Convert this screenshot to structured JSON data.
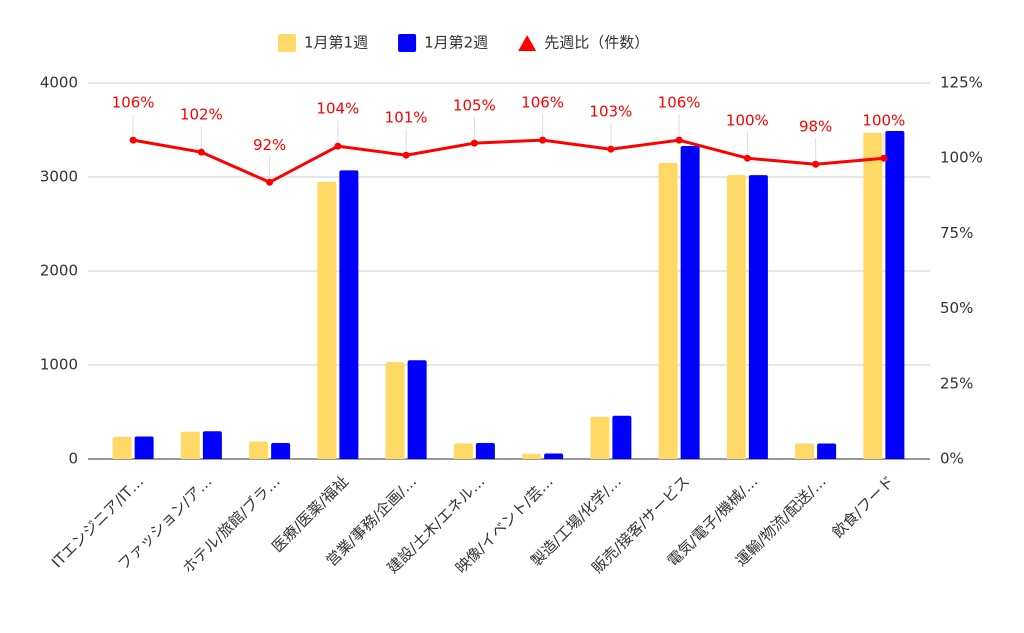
{
  "chart_data": {
    "type": "bar-line",
    "categories": [
      "ITエンジニア/IT…",
      "ファッション/ア…",
      "ホテル/旅館/ブラ…",
      "医療/医薬/福祉",
      "営業/事務/企画/…",
      "建設/土木/エネル…",
      "映像/イベント/芸…",
      "製造/工場/化学/…",
      "販売/接客/サービス",
      "電気/電子/機械/…",
      "運輸/物流/配送/…",
      "飲食/フード"
    ],
    "series": [
      {
        "name": "1月第1週",
        "color": "#ffd966",
        "values": [
          235,
          290,
          185,
          2950,
          1030,
          165,
          55,
          450,
          3150,
          3020,
          165,
          3470
        ]
      },
      {
        "name": "1月第2週",
        "color": "#0000ff",
        "values": [
          240,
          295,
          170,
          3070,
          1050,
          170,
          58,
          460,
          3330,
          3020,
          165,
          3490
        ]
      },
      {
        "name": "先週比（件数）",
        "color": "#ff0000",
        "axis": "y2",
        "values": [
          106,
          102,
          92,
          104,
          101,
          105,
          106,
          103,
          106,
          100,
          98,
          100
        ],
        "value_labels": [
          "106%",
          "102%",
          "92%",
          "104%",
          "101%",
          "105%",
          "106%",
          "103%",
          "106%",
          "100%",
          "98%",
          "100%"
        ]
      }
    ],
    "ylim": [
      0,
      4000
    ],
    "yticks": [
      0,
      1000,
      2000,
      3000,
      4000
    ],
    "y2lim": [
      0,
      125
    ],
    "y2ticks": [
      {
        "value": 0,
        "label": "0%"
      },
      {
        "value": 25,
        "label": "25%"
      },
      {
        "value": 50,
        "label": "50%"
      },
      {
        "value": 75,
        "label": "75%"
      },
      {
        "value": 100,
        "label": "100%"
      },
      {
        "value": 125,
        "label": "125%"
      }
    ],
    "grid": true,
    "legend": "top"
  }
}
